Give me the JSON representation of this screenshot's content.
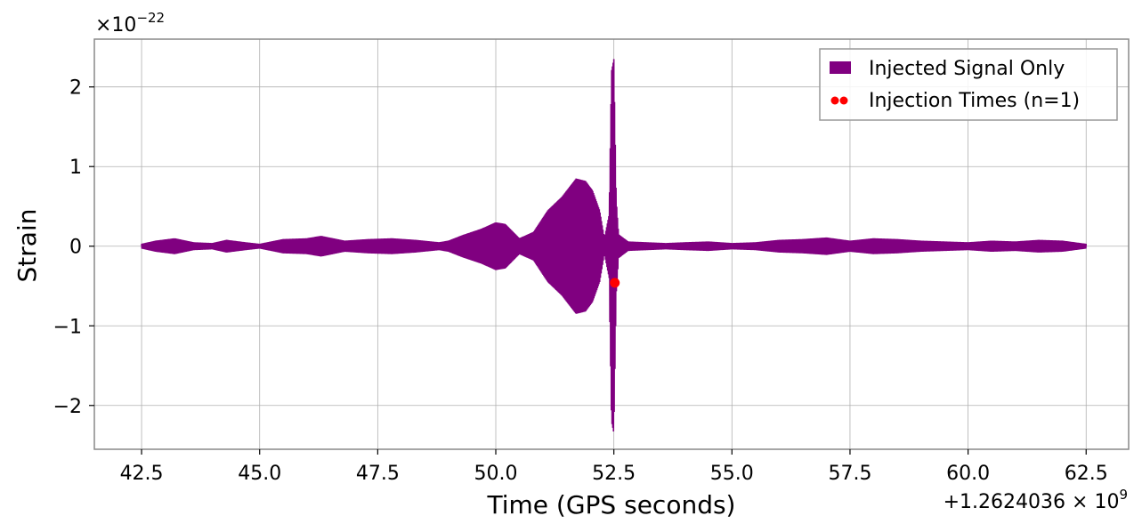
{
  "chart_data": {
    "type": "line",
    "title": "",
    "xlabel": "Time (GPS seconds)",
    "ylabel": "Strain",
    "x_offset_label": "+1.2624036",
    "y_scale_label": "−22",
    "xlim": [
      41.5,
      63.4
    ],
    "ylim": [
      -2.55,
      2.6
    ],
    "xticks": [
      42.5,
      45.0,
      47.5,
      50.0,
      52.5,
      55.0,
      57.5,
      60.0,
      62.5
    ],
    "xtick_labels": [
      "42.5",
      "45.0",
      "47.5",
      "50.0",
      "52.5",
      "55.0",
      "57.5",
      "60.0",
      "62.5"
    ],
    "yticks": [
      -2,
      -1,
      0,
      1,
      2
    ],
    "ytick_labels": [
      "−2",
      "−1",
      "0",
      "1",
      "2"
    ],
    "grid": true,
    "legend_position": "top-right",
    "series": [
      {
        "name": "Injected Signal Only",
        "kind": "oscillation",
        "color": "#800080",
        "x_range": [
          42.5,
          62.5
        ],
        "envelope": [
          [
            42.5,
            0.03
          ],
          [
            42.8,
            0.07
          ],
          [
            43.2,
            0.1
          ],
          [
            43.6,
            0.05
          ],
          [
            44.0,
            0.04
          ],
          [
            44.3,
            0.08
          ],
          [
            44.7,
            0.05
          ],
          [
            45.0,
            0.03
          ],
          [
            45.5,
            0.09
          ],
          [
            46.0,
            0.1
          ],
          [
            46.3,
            0.13
          ],
          [
            46.8,
            0.07
          ],
          [
            47.3,
            0.09
          ],
          [
            47.8,
            0.1
          ],
          [
            48.3,
            0.08
          ],
          [
            48.8,
            0.05
          ],
          [
            49.0,
            0.07
          ],
          [
            49.3,
            0.14
          ],
          [
            49.7,
            0.22
          ],
          [
            50.0,
            0.3
          ],
          [
            50.2,
            0.28
          ],
          [
            50.5,
            0.1
          ],
          [
            50.8,
            0.18
          ],
          [
            51.1,
            0.45
          ],
          [
            51.4,
            0.62
          ],
          [
            51.7,
            0.85
          ],
          [
            51.9,
            0.82
          ],
          [
            52.05,
            0.7
          ],
          [
            52.2,
            0.45
          ],
          [
            52.3,
            0.1
          ],
          [
            52.4,
            0.4
          ],
          [
            52.45,
            2.2
          ],
          [
            52.5,
            2.35
          ],
          [
            52.55,
            0.6
          ],
          [
            52.6,
            0.15
          ],
          [
            52.8,
            0.06
          ],
          [
            53.2,
            0.05
          ],
          [
            53.6,
            0.04
          ],
          [
            54.0,
            0.05
          ],
          [
            54.5,
            0.06
          ],
          [
            55.0,
            0.04
          ],
          [
            55.5,
            0.05
          ],
          [
            56.0,
            0.08
          ],
          [
            56.5,
            0.09
          ],
          [
            57.0,
            0.11
          ],
          [
            57.5,
            0.07
          ],
          [
            58.0,
            0.1
          ],
          [
            58.5,
            0.09
          ],
          [
            59.0,
            0.07
          ],
          [
            59.5,
            0.06
          ],
          [
            60.0,
            0.05
          ],
          [
            60.5,
            0.07
          ],
          [
            61.0,
            0.06
          ],
          [
            61.5,
            0.08
          ],
          [
            62.0,
            0.07
          ],
          [
            62.5,
            0.03
          ]
        ]
      },
      {
        "name": "Injection Times (n=1)",
        "kind": "scatter",
        "color": "#ff0000",
        "points": [
          [
            52.52,
            -0.46
          ]
        ]
      }
    ]
  }
}
